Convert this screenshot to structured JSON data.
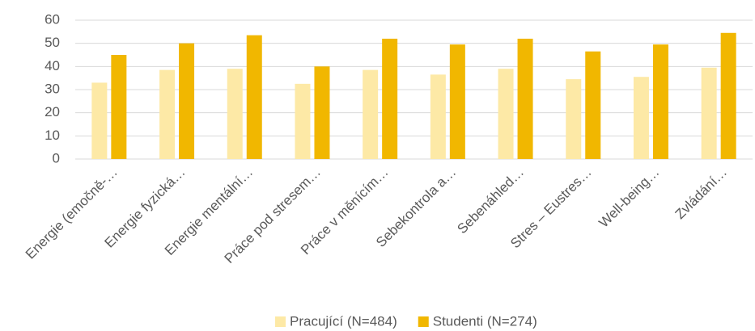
{
  "chart_data": {
    "type": "bar",
    "categories": [
      "Energie (emočně-…",
      "Energie fyzická…",
      "Energie mentální…",
      "Práce pod stresem…",
      "Práce v měnícím…",
      "Sebekontrola a…",
      "Sebenáhled…",
      "Stres – Eustres…",
      "Well-being…",
      "Zvládání…"
    ],
    "series": [
      {
        "name": "Pracující (N=484)",
        "color": "#fde9a6",
        "values": [
          33,
          38.5,
          39,
          32.5,
          38.5,
          36.5,
          39,
          34.5,
          35.5,
          39.5
        ]
      },
      {
        "name": "Studenti (N=274)",
        "color": "#f1b700",
        "values": [
          45,
          50,
          53.5,
          40,
          52,
          49.5,
          52,
          46.5,
          49.5,
          54.5
        ]
      }
    ],
    "ylim": [
      0,
      60
    ],
    "yticks": [
      0,
      10,
      20,
      30,
      40,
      50,
      60
    ],
    "grid": true,
    "legend": "bottom"
  }
}
